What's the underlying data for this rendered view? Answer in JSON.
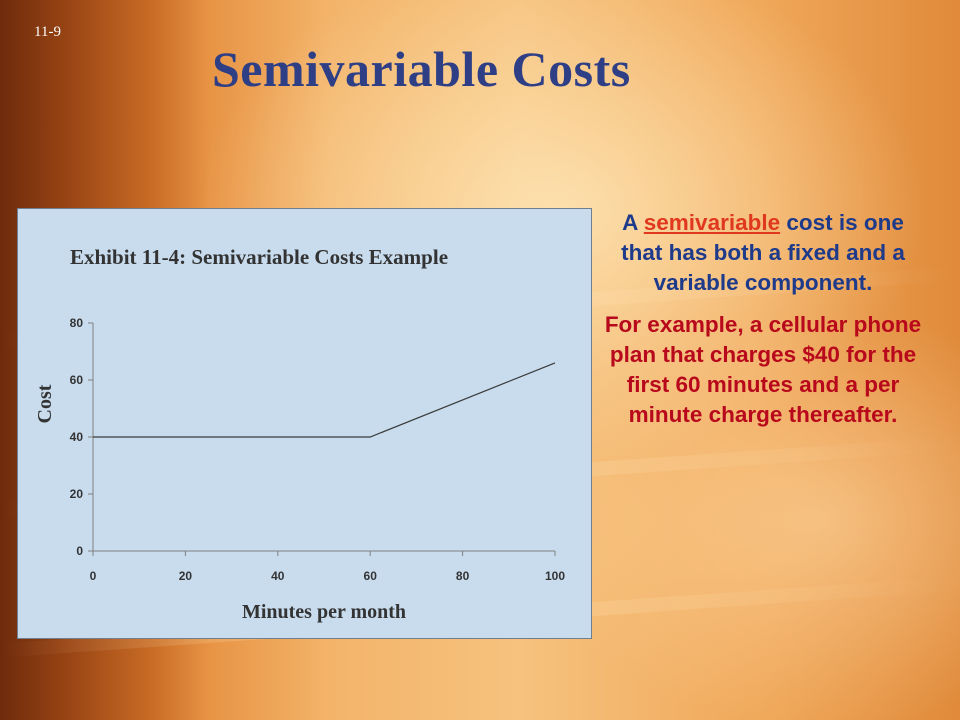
{
  "slide": {
    "number": "11-9",
    "title": "Semivariable Costs"
  },
  "text": {
    "definition_prefix": "A ",
    "definition_term": "semivariable",
    "definition_suffix": " cost is one that has both a fixed and a variable component.",
    "example": "For example, a cellular phone plan that charges $40 for the first 60 minutes and a per minute charge thereafter."
  },
  "colors": {
    "title": "#2f3f86",
    "definition_text": "#1e3a8a",
    "term_link": "#e0381e",
    "example_text": "#b8081c",
    "chart_background": "#c8dcee"
  },
  "chart_data": {
    "type": "line",
    "title": "Exhibit 11-4: Semivariable Costs Example",
    "xlabel": "Minutes per month",
    "ylabel": "Cost",
    "xlim": [
      0,
      100
    ],
    "ylim": [
      0,
      80
    ],
    "x_ticks": [
      0,
      20,
      40,
      60,
      80,
      100
    ],
    "y_ticks": [
      0,
      20,
      40,
      60,
      80
    ],
    "grid": false,
    "legend": "none",
    "series": [
      {
        "x": [
          0,
          60,
          100
        ],
        "y": [
          40,
          40,
          66
        ]
      }
    ]
  }
}
